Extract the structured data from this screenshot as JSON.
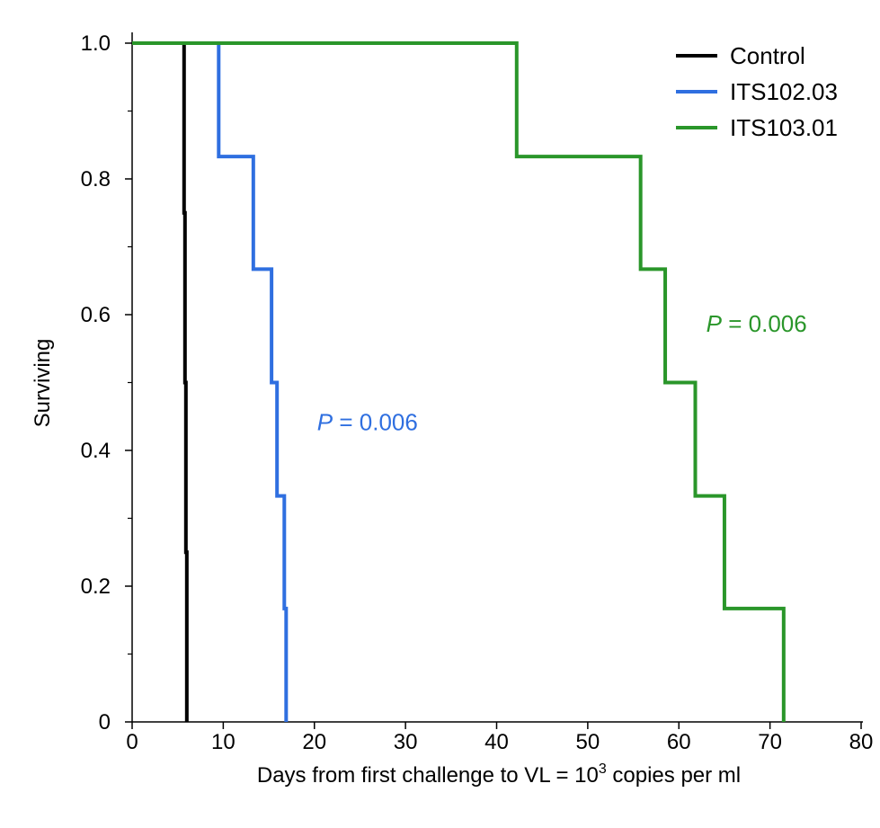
{
  "chart_data": {
    "type": "line",
    "step": true,
    "xlabel": "Days from first challenge to VL = 10",
    "xlabel_sup": "3",
    "xlabel_suffix": " copies per ml",
    "ylabel": "Surviving",
    "xlim": [
      0,
      80
    ],
    "ylim": [
      0,
      1.0
    ],
    "x_ticks": [
      0,
      10,
      20,
      30,
      40,
      50,
      60,
      70,
      80
    ],
    "x_tick_labels": [
      "0",
      "10",
      "20",
      "30",
      "40",
      "50",
      "60",
      "70",
      "80"
    ],
    "y_ticks": [
      0,
      0.2,
      0.4,
      0.6,
      0.8,
      1.0
    ],
    "y_tick_labels": [
      "0",
      "0.2",
      "0.4",
      "0.6",
      "0.8",
      "1.0"
    ],
    "y_minor_ticks": [
      0.1,
      0.3,
      0.5,
      0.7,
      0.9
    ],
    "grid": false,
    "legend_position": "top-right",
    "series": [
      {
        "name": "Control",
        "color": "#000000",
        "x": [
          0,
          5.7,
          5.8,
          5.9,
          6.0
        ],
        "y": [
          1.0,
          0.75,
          0.5,
          0.25,
          0.0
        ]
      },
      {
        "name": "ITS102.03",
        "color": "#2f6fe0",
        "x": [
          0,
          9.5,
          13.3,
          15.3,
          15.9,
          16.7,
          16.9
        ],
        "y": [
          1.0,
          0.833,
          0.667,
          0.5,
          0.333,
          0.167,
          0.0
        ]
      },
      {
        "name": "ITS103.01",
        "color": "#2a962a",
        "x": [
          0,
          42.2,
          55.8,
          58.5,
          61.8,
          65.0,
          71.5
        ],
        "y": [
          1.0,
          0.833,
          0.667,
          0.5,
          0.333,
          0.167,
          0.0
        ]
      }
    ],
    "annotations": [
      {
        "italic": "P",
        "rest": " = 0.006",
        "color": "#2f6fe0",
        "x": 20.3,
        "y": 0.43
      },
      {
        "italic": "P",
        "rest": " = 0.006",
        "color": "#2a962a",
        "x": 63.0,
        "y": 0.575
      }
    ]
  }
}
